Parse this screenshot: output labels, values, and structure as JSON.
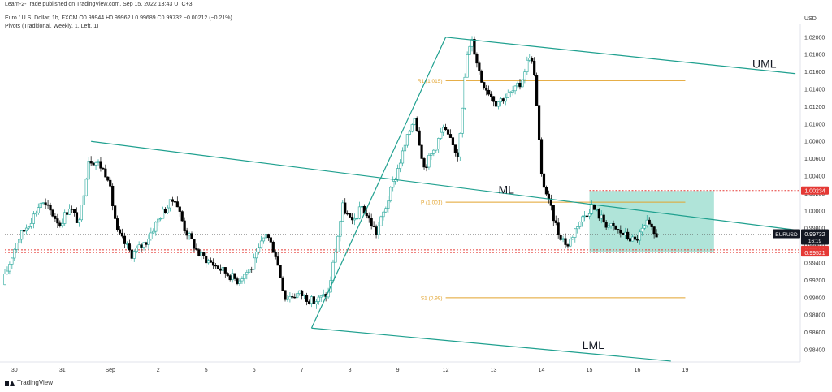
{
  "header": {
    "publisher": "Learn-2-Trade published on TradingView.com, Sep 15, 2022 13:43 UTC+3",
    "symbol_line": "Euro / U.S. Dollar, 1h, FXCM  O0.99944  H0.99962  L0.99689  C0.99732  −0.00212 (−0.21%)",
    "indicator_line": "Pivots (Traditional, Weekly, 1, Left, 1)"
  },
  "footer": {
    "brand": "TradingView"
  },
  "colors": {
    "bull": "#26a69a",
    "bear": "#000000",
    "channel": "#1fa08f",
    "pivot": "#e2a32d",
    "red_level": "#e53935",
    "zone": "#8fd9c9",
    "axis_text": "#333333"
  },
  "chart_data": {
    "type": "candlestick",
    "symbol": "EURUSD",
    "timeframe": "1h",
    "y_axis": {
      "unit": "USD",
      "range": [
        0.9826,
        1.0212
      ],
      "ticks": [
        "1.02000",
        "1.01800",
        "1.01600",
        "1.01400",
        "1.01200",
        "1.01000",
        "1.00800",
        "1.00600",
        "1.00400",
        "1.00200",
        "1.00000",
        "0.99800",
        "0.99600",
        "0.99400",
        "0.99200",
        "0.99000",
        "0.98800",
        "0.98600",
        "0.98400"
      ]
    },
    "x_axis": {
      "range_days": [
        -2.0,
        14.6
      ],
      "ticks": [
        {
          "label": "30",
          "day": -1.8
        },
        {
          "label": "31",
          "day": -0.8
        },
        {
          "label": "Sep",
          "day": 0.2
        },
        {
          "label": "2",
          "day": 1.2
        },
        {
          "label": "5",
          "day": 2.2
        },
        {
          "label": "6",
          "day": 3.2
        },
        {
          "label": "7",
          "day": 4.2
        },
        {
          "label": "8",
          "day": 5.2
        },
        {
          "label": "9",
          "day": 6.2
        },
        {
          "label": "12",
          "day": 7.2
        },
        {
          "label": "13",
          "day": 8.2
        },
        {
          "label": "14",
          "day": 9.2
        },
        {
          "label": "15",
          "day": 10.2
        },
        {
          "label": "16",
          "day": 11.2
        },
        {
          "label": "19",
          "day": 12.2
        }
      ]
    },
    "price_path": [
      [
        -2.0,
        0.9915
      ],
      [
        -1.7,
        0.9965
      ],
      [
        -1.4,
        0.999
      ],
      [
        -1.2,
        1.001
      ],
      [
        -1.0,
        1.0
      ],
      [
        -0.8,
        0.9985
      ],
      [
        -0.6,
        1.0005
      ],
      [
        -0.4,
        0.9985
      ],
      [
        -0.2,
        1.006
      ],
      [
        0.0,
        1.0055
      ],
      [
        0.2,
        1.004
      ],
      [
        0.4,
        0.9975
      ],
      [
        0.7,
        0.995
      ],
      [
        1.0,
        0.9965
      ],
      [
        1.3,
        0.9995
      ],
      [
        1.6,
        1.0015
      ],
      [
        1.8,
        0.998
      ],
      [
        2.1,
        0.995
      ],
      [
        2.5,
        0.9935
      ],
      [
        2.9,
        0.992
      ],
      [
        3.2,
        0.9935
      ],
      [
        3.5,
        0.9975
      ],
      [
        3.7,
        0.995
      ],
      [
        3.9,
        0.99
      ],
      [
        4.2,
        0.9905
      ],
      [
        4.5,
        0.9895
      ],
      [
        4.8,
        0.9905
      ],
      [
        5.1,
        1.0005
      ],
      [
        5.3,
        0.9985
      ],
      [
        5.5,
        1.0005
      ],
      [
        5.8,
        0.9975
      ],
      [
        6.0,
        1.0005
      ],
      [
        6.2,
        1.004
      ],
      [
        6.4,
        1.0075
      ],
      [
        6.6,
        1.011
      ],
      [
        6.8,
        1.005
      ],
      [
        7.0,
        1.007
      ],
      [
        7.2,
        1.0095
      ],
      [
        7.5,
        1.0065
      ],
      [
        7.7,
        1.018
      ],
      [
        7.8,
        1.0195
      ],
      [
        8.0,
        1.015
      ],
      [
        8.3,
        1.0125
      ],
      [
        8.6,
        1.0135
      ],
      [
        8.8,
        1.0145
      ],
      [
        9.0,
        1.018
      ],
      [
        9.1,
        1.016
      ],
      [
        9.25,
        1.004
      ],
      [
        9.4,
        1.001
      ],
      [
        9.6,
        0.9975
      ],
      [
        9.8,
        0.996
      ],
      [
        10.0,
        0.9985
      ],
      [
        10.3,
        1.0005
      ],
      [
        10.6,
        0.9985
      ],
      [
        10.9,
        0.9975
      ],
      [
        11.2,
        0.9965
      ],
      [
        11.45,
        0.9985
      ],
      [
        11.6,
        0.9973
      ]
    ],
    "trendlines": [
      {
        "label": "UML",
        "from": [
          7.2,
          1.02
        ],
        "to": [
          14.5,
          1.0158
        ]
      },
      {
        "label": "ML",
        "from": [
          -0.2,
          1.008
        ],
        "to": [
          14.5,
          0.9978
        ]
      },
      {
        "label": "LML",
        "from": [
          4.4,
          0.9865
        ],
        "to": [
          11.9,
          0.9827
        ]
      },
      {
        "label": "",
        "from": [
          4.4,
          0.9865
        ],
        "to": [
          7.2,
          1.02
        ]
      }
    ],
    "pivots": [
      {
        "label": "R1 (1.015)",
        "value": 1.015,
        "from_day": 7.2,
        "to_day": 12.2
      },
      {
        "label": "P (1.001)",
        "value": 1.001,
        "from_day": 7.2,
        "to_day": 12.2
      },
      {
        "label": "S1 (0.99)",
        "value": 0.99,
        "from_day": 7.2,
        "to_day": 12.2
      }
    ],
    "zone": {
      "from_day": 10.2,
      "to_day": 12.8,
      "top": 1.0023,
      "bottom": 0.9952
    },
    "levels": [
      {
        "value": 1.00234,
        "label": "1.00234",
        "style": "red-dotted"
      },
      {
        "value": 0.99551,
        "label": "0.99551",
        "style": "red-dotted"
      },
      {
        "value": 0.99521,
        "label": "0.99521",
        "style": "red-dotted"
      },
      {
        "value": 0.99732,
        "label": "0.99732",
        "style": "last-price"
      }
    ],
    "last_price": {
      "symbol": "EURUSD",
      "value": "0.99732",
      "countdown": "16:19"
    }
  }
}
